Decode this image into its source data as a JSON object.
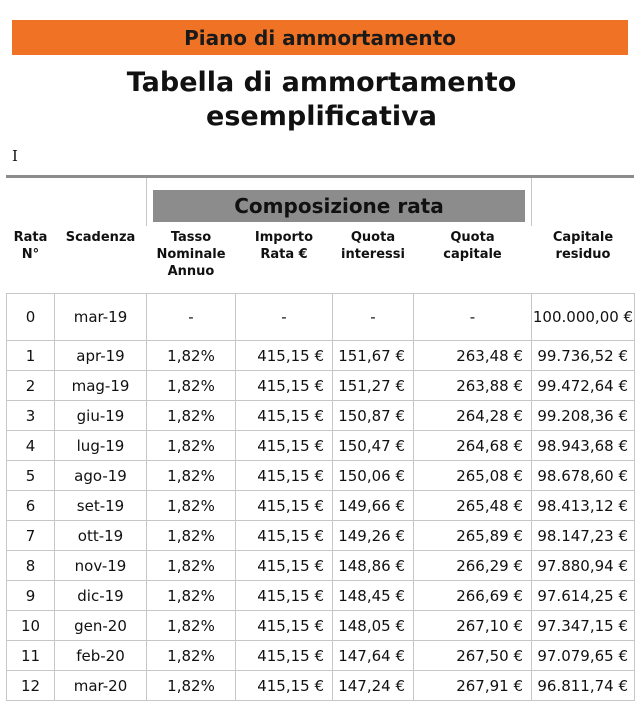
{
  "banner": "Piano di ammortamento",
  "title_line1": "Tabella di ammortamento",
  "title_line2": "esemplificativa",
  "cursor_glyph": "I",
  "group_header": "Composizione rata",
  "headers": {
    "rata": [
      "Rata",
      "N°"
    ],
    "scadenza": [
      "Scadenza"
    ],
    "tasso": [
      "Tasso",
      "Nominale",
      "Annuo"
    ],
    "importo": [
      "Importo",
      "Rata €"
    ],
    "interessi": [
      "Quota",
      "interessi"
    ],
    "capitale": [
      "Quota",
      "capitale"
    ],
    "residuo": [
      "Capitale",
      "residuo"
    ]
  },
  "rows": [
    {
      "n": "0",
      "scadenza": "mar-19",
      "tasso": "-",
      "importo": "-",
      "interessi": "-",
      "capitale": "-",
      "residuo": "100.000,00 €"
    },
    {
      "n": "1",
      "scadenza": "apr-19",
      "tasso": "1,82%",
      "importo": "415,15 €",
      "interessi": "151,67 €",
      "capitale": "263,48 €",
      "residuo": "99.736,52 €"
    },
    {
      "n": "2",
      "scadenza": "mag-19",
      "tasso": "1,82%",
      "importo": "415,15 €",
      "interessi": "151,27 €",
      "capitale": "263,88 €",
      "residuo": "99.472,64 €"
    },
    {
      "n": "3",
      "scadenza": "giu-19",
      "tasso": "1,82%",
      "importo": "415,15 €",
      "interessi": "150,87 €",
      "capitale": "264,28 €",
      "residuo": "99.208,36 €"
    },
    {
      "n": "4",
      "scadenza": "lug-19",
      "tasso": "1,82%",
      "importo": "415,15 €",
      "interessi": "150,47 €",
      "capitale": "264,68 €",
      "residuo": "98.943,68 €"
    },
    {
      "n": "5",
      "scadenza": "ago-19",
      "tasso": "1,82%",
      "importo": "415,15 €",
      "interessi": "150,06 €",
      "capitale": "265,08 €",
      "residuo": "98.678,60 €"
    },
    {
      "n": "6",
      "scadenza": "set-19",
      "tasso": "1,82%",
      "importo": "415,15 €",
      "interessi": "149,66 €",
      "capitale": "265,48 €",
      "residuo": "98.413,12 €"
    },
    {
      "n": "7",
      "scadenza": "ott-19",
      "tasso": "1,82%",
      "importo": "415,15 €",
      "interessi": "149,26 €",
      "capitale": "265,89 €",
      "residuo": "98.147,23 €"
    },
    {
      "n": "8",
      "scadenza": "nov-19",
      "tasso": "1,82%",
      "importo": "415,15 €",
      "interessi": "148,86 €",
      "capitale": "266,29 €",
      "residuo": "97.880,94 €"
    },
    {
      "n": "9",
      "scadenza": "dic-19",
      "tasso": "1,82%",
      "importo": "415,15 €",
      "interessi": "148,45 €",
      "capitale": "266,69 €",
      "residuo": "97.614,25 €"
    },
    {
      "n": "10",
      "scadenza": "gen-20",
      "tasso": "1,82%",
      "importo": "415,15 €",
      "interessi": "148,05 €",
      "capitale": "267,10 €",
      "residuo": "97.347,15 €"
    },
    {
      "n": "11",
      "scadenza": "feb-20",
      "tasso": "1,82%",
      "importo": "415,15 €",
      "interessi": "147,64 €",
      "capitale": "267,50 €",
      "residuo": "97.079,65 €"
    },
    {
      "n": "12",
      "scadenza": "mar-20",
      "tasso": "1,82%",
      "importo": "415,15 €",
      "interessi": "147,24 €",
      "capitale": "267,91 €",
      "residuo": "96.811,74 €"
    }
  ],
  "colors": {
    "banner": "#f07325",
    "group_header_bg": "#8c8c8c",
    "grid": "#c7c7c7"
  }
}
